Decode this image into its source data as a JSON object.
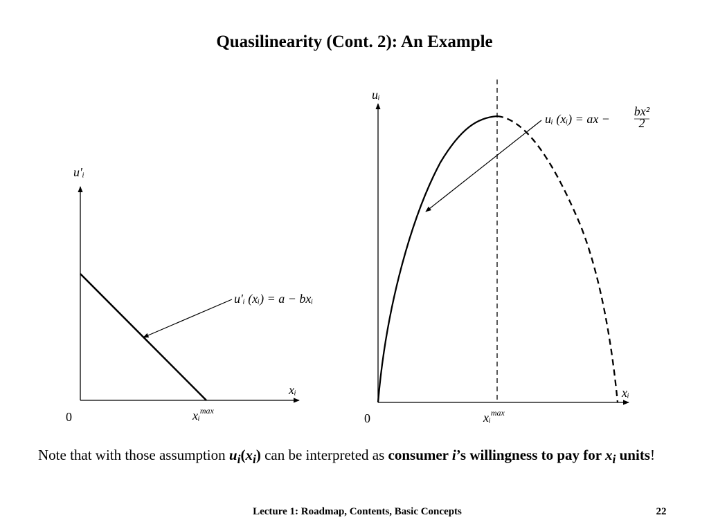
{
  "title": "Quasilinearity (Cont. 2): An Example",
  "left_diagram": {
    "y_label": "u′ᵢ",
    "x_label": "xᵢ",
    "origin": "0",
    "xmax_label": {
      "base": "xᵢ",
      "sup": "max"
    },
    "annotation": "u′ᵢ (xᵢ) = a − bxᵢ"
  },
  "right_diagram": {
    "y_label": "uᵢ",
    "x_label": "xᵢ",
    "origin": "0",
    "xmax_label": {
      "base": "xᵢ",
      "sup": "max"
    },
    "annotation": {
      "lhs": "uᵢ (xᵢ) = ax −",
      "numerator": "bx²",
      "denominator": "2"
    }
  },
  "note": [
    "Note that with those assumption ",
    "u",
    "i",
    "(",
    "x",
    "i",
    ")",
    " can be interpreted as ",
    "consumer ",
    "i",
    "’s willingness to pay for ",
    "x",
    "i",
    " units",
    "!"
  ],
  "footer": {
    "text": "Lecture 1: Roadmap, Contents, Basic Concepts",
    "page": "22"
  }
}
